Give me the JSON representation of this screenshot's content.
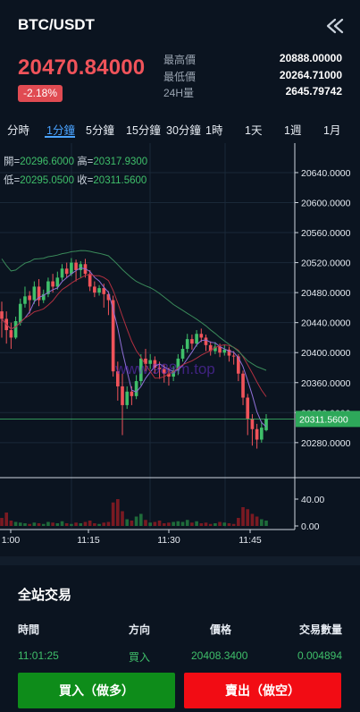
{
  "header": {
    "title": "BTC/USDT",
    "back_icon": "double-chevron-left-icon"
  },
  "ticker": {
    "last_price": "20470.84000",
    "change_pct": "-2.18%",
    "stats": [
      {
        "label": "最高價",
        "value": "20888.00000"
      },
      {
        "label": "最低價",
        "value": "20264.71000"
      },
      {
        "label": "24H量",
        "value": "2645.79742"
      }
    ]
  },
  "tabs": [
    {
      "label": "分時",
      "active": false
    },
    {
      "label": "1分鐘",
      "active": true
    },
    {
      "label": "5分鐘",
      "active": false
    },
    {
      "label": "15分鐘",
      "active": false
    },
    {
      "label": "30分鐘",
      "active": false
    },
    {
      "label": "1時",
      "active": false
    },
    {
      "label": "1天",
      "active": false
    },
    {
      "label": "1週",
      "active": false
    },
    {
      "label": "1月",
      "active": false
    }
  ],
  "ohlc": {
    "open_label": "開=",
    "open": "20296.6000",
    "high_label": "高=",
    "high": "20317.9300",
    "low_label": "低=",
    "low": "20295.0500",
    "close_label": "收=",
    "close": "20311.5600"
  },
  "chart_data": {
    "type": "candlestick",
    "y_ticks": [
      "20640.0000",
      "20600.0000",
      "20560.0000",
      "20520.0000",
      "20480.0000",
      "20440.0000",
      "20400.0000",
      "20360.0000",
      "20320.0000",
      "20280.0000"
    ],
    "ylim": [
      20250,
      20665
    ],
    "current_price_label": "20311.5600",
    "current_price": 20311.56,
    "volume_ticks": [
      "40.00",
      "0.00"
    ],
    "x_ticks": [
      "1:00",
      "11:15",
      "11:30",
      "11:45"
    ],
    "watermark": "www.988m.top",
    "candles": [
      [
        20455,
        20445,
        20468,
        20420,
        "down"
      ],
      [
        20445,
        20430,
        20455,
        20412,
        "down"
      ],
      [
        20430,
        20420,
        20440,
        20405,
        "down"
      ],
      [
        20420,
        20442,
        20448,
        20418,
        "up"
      ],
      [
        20440,
        20465,
        20472,
        20436,
        "up"
      ],
      [
        20465,
        20475,
        20488,
        20460,
        "up"
      ],
      [
        20476,
        20470,
        20482,
        20452,
        "down"
      ],
      [
        20470,
        20488,
        20495,
        20465,
        "up"
      ],
      [
        20488,
        20470,
        20498,
        20462,
        "down"
      ],
      [
        20470,
        20478,
        20484,
        20466,
        "up"
      ],
      [
        20478,
        20495,
        20500,
        20474,
        "up"
      ],
      [
        20495,
        20488,
        20505,
        20480,
        "down"
      ],
      [
        20488,
        20500,
        20508,
        20484,
        "up"
      ],
      [
        20500,
        20512,
        20518,
        20496,
        "up"
      ],
      [
        20512,
        20505,
        20520,
        20500,
        "down"
      ],
      [
        20505,
        20520,
        20526,
        20502,
        "up"
      ],
      [
        20520,
        20510,
        20524,
        20495,
        "down"
      ],
      [
        20510,
        20518,
        20522,
        20500,
        "up"
      ],
      [
        20518,
        20505,
        20525,
        20500,
        "down"
      ],
      [
        20505,
        20488,
        20510,
        20482,
        "down"
      ],
      [
        20488,
        20480,
        20495,
        20474,
        "down"
      ],
      [
        20480,
        20486,
        20490,
        20476,
        "up"
      ],
      [
        20486,
        20478,
        20492,
        20460,
        "down"
      ],
      [
        20478,
        20470,
        20482,
        20450,
        "down"
      ],
      [
        20470,
        20375,
        20476,
        20368,
        "down"
      ],
      [
        20375,
        20355,
        20388,
        20336,
        "down"
      ],
      [
        20355,
        20330,
        20372,
        20290,
        "down"
      ],
      [
        20330,
        20348,
        20355,
        20325,
        "up"
      ],
      [
        20348,
        20342,
        20355,
        20330,
        "down"
      ],
      [
        20342,
        20362,
        20370,
        20338,
        "up"
      ],
      [
        20362,
        20392,
        20398,
        20356,
        "up"
      ],
      [
        20392,
        20385,
        20405,
        20375,
        "down"
      ],
      [
        20385,
        20390,
        20398,
        20378,
        "up"
      ],
      [
        20390,
        20380,
        20395,
        20372,
        "down"
      ],
      [
        20380,
        20378,
        20388,
        20365,
        "down"
      ],
      [
        20378,
        20372,
        20384,
        20360,
        "down"
      ],
      [
        20372,
        20368,
        20380,
        20356,
        "down"
      ],
      [
        20368,
        20376,
        20382,
        20362,
        "up"
      ],
      [
        20376,
        20392,
        20398,
        20370,
        "up"
      ],
      [
        20392,
        20405,
        20410,
        20388,
        "up"
      ],
      [
        20405,
        20418,
        20425,
        20400,
        "up"
      ],
      [
        20418,
        20412,
        20424,
        20404,
        "down"
      ],
      [
        20412,
        20425,
        20430,
        20408,
        "up"
      ],
      [
        20425,
        20420,
        20432,
        20414,
        "down"
      ],
      [
        20420,
        20410,
        20424,
        20402,
        "down"
      ],
      [
        20410,
        20402,
        20415,
        20396,
        "down"
      ],
      [
        20402,
        20408,
        20414,
        20398,
        "up"
      ],
      [
        20408,
        20400,
        20412,
        20394,
        "down"
      ],
      [
        20400,
        20404,
        20410,
        20396,
        "up"
      ],
      [
        20404,
        20396,
        20408,
        20388,
        "down"
      ],
      [
        20396,
        20395,
        20402,
        20384,
        "down"
      ],
      [
        20395,
        20372,
        20398,
        20362,
        "down"
      ],
      [
        20372,
        20340,
        20376,
        20330,
        "down"
      ],
      [
        20340,
        20312,
        20345,
        20290,
        "down"
      ],
      [
        20312,
        20298,
        20318,
        20276,
        "down"
      ],
      [
        20298,
        20284,
        20305,
        20272,
        "down"
      ],
      [
        20284,
        20300,
        20308,
        20280,
        "up"
      ],
      [
        20296.6,
        20311.56,
        20317.93,
        20295.05,
        "up"
      ]
    ],
    "volumes": [
      12,
      20,
      8,
      6,
      5,
      4,
      3,
      5,
      4,
      3,
      6,
      5,
      4,
      7,
      4,
      3,
      5,
      4,
      6,
      8,
      4,
      3,
      5,
      6,
      35,
      40,
      22,
      10,
      8,
      14,
      18,
      9,
      5,
      6,
      8,
      4,
      5,
      6,
      7,
      6,
      9,
      5,
      7,
      4,
      5,
      3,
      4,
      6,
      5,
      4,
      3,
      12,
      28,
      25,
      18,
      14,
      10,
      8
    ]
  },
  "trades": {
    "title": "全站交易",
    "headers": {
      "time": "時間",
      "side": "方向",
      "price": "價格",
      "qty": "交易數量"
    },
    "rows": [
      {
        "time": "11:01:25",
        "side": "買入",
        "price": "20408.3400",
        "qty": "0.004894"
      }
    ]
  },
  "actions": {
    "buy_label": "買入（做多）",
    "sell_label": "賣出（做空）"
  },
  "colors": {
    "up": "#3fbf6a",
    "down": "#f0535a",
    "accent": "#4aa3ff",
    "bg": "#0b1420"
  }
}
